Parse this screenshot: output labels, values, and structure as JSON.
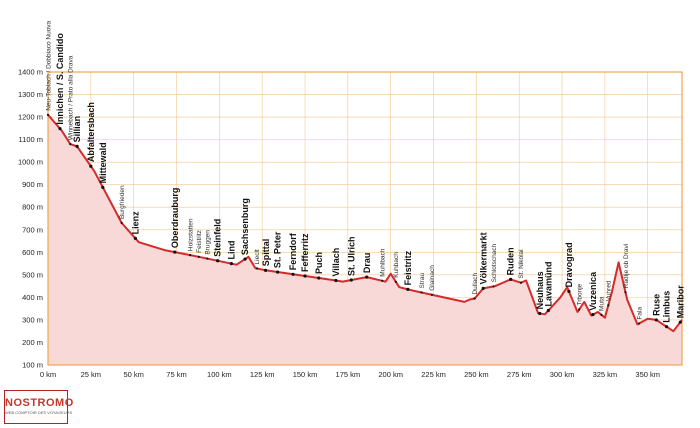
{
  "brand": {
    "name": "NOSTROMO",
    "tagline": "WEB COMPTOIR DES VOYAGEURS",
    "color": "#c0392b"
  },
  "colors": {
    "line": "#d42b2b",
    "fill": "#f9d8d8",
    "frame": "#f0a64a",
    "grid": "#f3c78f"
  },
  "chart_data": {
    "type": "area",
    "title": "",
    "xlabel": "",
    "ylabel": "",
    "xlim": [
      0,
      370
    ],
    "ylim": [
      100,
      1400
    ],
    "grid": true,
    "x_ticks": [
      0,
      25,
      50,
      75,
      100,
      125,
      150,
      175,
      200,
      225,
      250,
      275,
      300,
      325,
      350
    ],
    "x_tick_labels": [
      "0 km",
      "25 km",
      "50 km",
      "75 km",
      "100 km",
      "125 km",
      "150 km",
      "175 km",
      "200 km",
      "225 km",
      "250 km",
      "275 km",
      "300 km",
      "325 km",
      "350 km"
    ],
    "y_ticks": [
      100,
      200,
      300,
      400,
      500,
      600,
      700,
      800,
      900,
      1000,
      1100,
      1200,
      1300,
      1400
    ],
    "y_tick_labels": [
      "100 m",
      "200 m",
      "300 m",
      "400 m",
      "500 m",
      "600 m",
      "700 m",
      "800 m",
      "900 m",
      "1000 m",
      "1100 m",
      "1200 m",
      "1300 m",
      "1400 m"
    ],
    "series": [
      {
        "x": [
          0,
          8,
          13,
          17,
          27,
          43,
          53,
          68,
          88,
          110,
          117,
          121,
          127,
          168,
          172,
          186,
          197,
          200,
          205,
          213,
          243,
          246,
          249,
          254,
          261,
          270,
          276,
          279,
          286,
          290,
          299,
          303,
          309,
          313,
          317,
          321,
          325,
          329,
          333,
          338,
          344,
          350,
          355,
          365,
          370
        ],
        "y": [
          1210,
          1140,
          1080,
          1070,
          960,
          730,
          645,
          610,
          580,
          545,
          580,
          530,
          520,
          475,
          470,
          490,
          470,
          505,
          445,
          430,
          380,
          390,
          395,
          440,
          450,
          480,
          465,
          475,
          330,
          325,
          400,
          445,
          335,
          380,
          320,
          335,
          310,
          420,
          555,
          390,
          280,
          305,
          300,
          250,
          300
        ]
      }
    ],
    "places": [
      {
        "name": "Neu-Toblach / Dobbiaco Nuova",
        "km": 0,
        "major": false
      },
      {
        "name": "Innichen / S. Candido",
        "km": 7,
        "major": true
      },
      {
        "name": "Winnebach / Prato alla Drava",
        "km": 13,
        "major": false
      },
      {
        "name": "Sillian",
        "km": 17,
        "major": true
      },
      {
        "name": "Abfaltersbach",
        "km": 25,
        "major": true
      },
      {
        "name": "Mittewald",
        "km": 32,
        "major": true
      },
      {
        "name": "Burgfrieden",
        "km": 43,
        "major": false
      },
      {
        "name": "Lienz",
        "km": 51,
        "major": true
      },
      {
        "name": "Oberdrauburg",
        "km": 74,
        "major": true
      },
      {
        "name": "Holzstatten",
        "km": 83,
        "major": false
      },
      {
        "name": "Feistritz",
        "km": 88,
        "major": false
      },
      {
        "name": "Bruggen",
        "km": 93,
        "major": false
      },
      {
        "name": "Steinfeld",
        "km": 99,
        "major": true
      },
      {
        "name": "Lind",
        "km": 107,
        "major": true
      },
      {
        "name": "Sachsenburg",
        "km": 115,
        "major": true
      },
      {
        "name": "Lieclt",
        "km": 122,
        "major": false
      },
      {
        "name": "Spittal",
        "km": 127,
        "major": true
      },
      {
        "name": "St. Peter",
        "km": 134,
        "major": true
      },
      {
        "name": "Ferndorf",
        "km": 143,
        "major": true
      },
      {
        "name": "Fefferritz",
        "km": 150,
        "major": true
      },
      {
        "name": "Puch",
        "km": 158,
        "major": true
      },
      {
        "name": "Villach",
        "km": 168,
        "major": true
      },
      {
        "name": "St. Ulrich",
        "km": 177,
        "major": true
      },
      {
        "name": "Drau",
        "km": 186,
        "major": true
      },
      {
        "name": "Muhlbach",
        "km": 195,
        "major": false
      },
      {
        "name": "Kuhbach",
        "km": 203,
        "major": false
      },
      {
        "name": "Feistritz",
        "km": 210,
        "major": true
      },
      {
        "name": "Strau",
        "km": 218,
        "major": false
      },
      {
        "name": "Glainach",
        "km": 224,
        "major": false
      },
      {
        "name": "Dullach",
        "km": 249,
        "major": false
      },
      {
        "name": "Völkermarkt",
        "km": 254,
        "major": true
      },
      {
        "name": "Schlotschach",
        "km": 260,
        "major": false
      },
      {
        "name": "Ruden",
        "km": 270,
        "major": true
      },
      {
        "name": "St. Nikolai",
        "km": 276,
        "major": false
      },
      {
        "name": "Neuhaus",
        "km": 287,
        "major": true
      },
      {
        "name": "Lavamünd",
        "km": 292,
        "major": true
      },
      {
        "name": "Dravograd",
        "km": 304,
        "major": true
      },
      {
        "name": "Trbonje",
        "km": 310,
        "major": false
      },
      {
        "name": "Vuzenica",
        "km": 318,
        "major": true
      },
      {
        "name": "Muta",
        "km": 323,
        "major": false
      },
      {
        "name": "Vuhred",
        "km": 327,
        "major": false
      },
      {
        "name": "Radlje ob Dravi",
        "km": 337,
        "major": false
      },
      {
        "name": "Fala",
        "km": 345,
        "major": false
      },
      {
        "name": "Ruse",
        "km": 355,
        "major": true
      },
      {
        "name": "Limbus",
        "km": 361,
        "major": true
      },
      {
        "name": "Maribor",
        "km": 369,
        "major": true
      }
    ]
  }
}
